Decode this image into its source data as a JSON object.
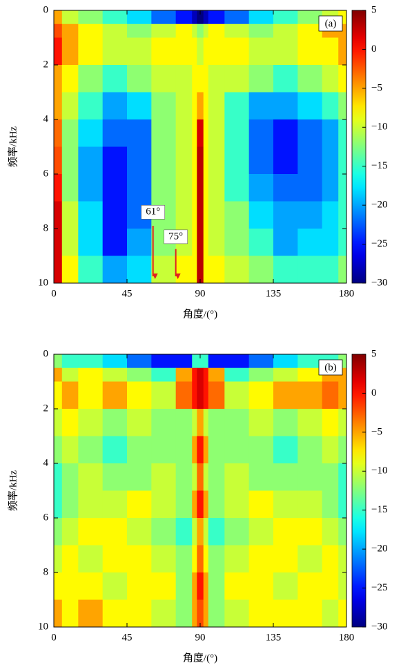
{
  "chart_data": [
    {
      "type": "heatmap",
      "label": "(a)",
      "xlabel": "角度/(°)",
      "ylabel": "频率/kHz",
      "colormap": "jet",
      "x_edges": [
        0,
        5,
        15,
        30,
        45,
        60,
        75,
        85,
        88,
        92,
        95,
        105,
        120,
        135,
        150,
        165,
        175,
        180
      ],
      "y_edges": [
        0,
        0.5,
        1,
        2,
        3,
        4,
        5,
        6,
        7,
        8,
        9,
        10
      ],
      "values": [
        [
          -5,
          -10,
          -12,
          -15,
          -18,
          -22,
          -25,
          -28,
          -30,
          -28,
          -25,
          -22,
          -18,
          -15,
          -12,
          -10,
          -8
        ],
        [
          -2,
          -5,
          -8,
          -10,
          -12,
          -10,
          -8,
          -10,
          -12,
          -10,
          -8,
          -10,
          -12,
          -10,
          -8,
          -5,
          -5
        ],
        [
          0,
          -5,
          -8,
          -10,
          -10,
          -8,
          -8,
          -8,
          -10,
          -8,
          -8,
          -8,
          -10,
          -10,
          -8,
          -8,
          -5
        ],
        [
          -5,
          -8,
          -12,
          -15,
          -12,
          -10,
          -10,
          -8,
          -8,
          -8,
          -10,
          -10,
          -12,
          -15,
          -12,
          -10,
          -8
        ],
        [
          -5,
          -10,
          -15,
          -20,
          -18,
          -12,
          -10,
          -8,
          -5,
          -8,
          -10,
          -15,
          -20,
          -20,
          -18,
          -15,
          -12
        ],
        [
          -3,
          -12,
          -18,
          -22,
          -22,
          -12,
          -10,
          -8,
          2,
          -8,
          -10,
          -15,
          -22,
          -25,
          -22,
          -20,
          -15
        ],
        [
          -2,
          -12,
          -20,
          -25,
          -22,
          -12,
          -10,
          -8,
          3,
          -8,
          -10,
          -15,
          -22,
          -25,
          -22,
          -20,
          -15
        ],
        [
          0,
          -12,
          -20,
          -25,
          -22,
          -12,
          -10,
          -8,
          3,
          -8,
          -10,
          -15,
          -20,
          -22,
          -22,
          -20,
          -15
        ],
        [
          2,
          -10,
          -18,
          -25,
          -22,
          -12,
          -10,
          -8,
          3,
          -8,
          -10,
          -12,
          -18,
          -20,
          -20,
          -18,
          -15
        ],
        [
          2,
          -10,
          -18,
          -25,
          -20,
          -12,
          -10,
          -8,
          3,
          -8,
          -10,
          -12,
          -15,
          -20,
          -18,
          -18,
          -15
        ],
        [
          2,
          -8,
          -15,
          -20,
          -18,
          -10,
          -8,
          -8,
          3,
          -8,
          -8,
          -10,
          -12,
          -15,
          -15,
          -15,
          -12
        ]
      ],
      "xlim": [
        0,
        180
      ],
      "xticks": [
        0,
        45,
        90,
        135,
        180
      ],
      "ylim": [
        0,
        10
      ],
      "y_inverted": true,
      "yticks": [
        0,
        2,
        4,
        6,
        8,
        10
      ],
      "zlim": [
        -30,
        5
      ],
      "zticks": [
        5,
        0,
        {
          "value": -5,
          "label": "−5"
        },
        {
          "value": -10,
          "label": "−10"
        },
        {
          "value": -15,
          "label": "−15"
        },
        {
          "value": -20,
          "label": "−20"
        },
        {
          "value": -25,
          "label": "−25"
        },
        {
          "value": -30,
          "label": "−30"
        }
      ],
      "annotations": [
        {
          "text": "61°",
          "x": 61
        },
        {
          "text": "75°",
          "x": 75
        }
      ]
    },
    {
      "type": "heatmap",
      "label": "(b)",
      "xlabel": "角度/(°)",
      "ylabel": "频率/kHz",
      "colormap": "jet",
      "x_edges": [
        0,
        5,
        15,
        30,
        45,
        60,
        75,
        85,
        88,
        92,
        95,
        105,
        120,
        135,
        150,
        165,
        175,
        180
      ],
      "y_edges": [
        0,
        0.5,
        1,
        2,
        3,
        4,
        5,
        6,
        7,
        8,
        9,
        10
      ],
      "values": [
        [
          -12,
          -15,
          -15,
          -18,
          -22,
          -25,
          -25,
          -15,
          -15,
          -15,
          -25,
          -25,
          -22,
          -18,
          -15,
          -15,
          -12
        ],
        [
          -5,
          -10,
          -8,
          -10,
          -12,
          -15,
          -5,
          0,
          2,
          0,
          -5,
          -15,
          -12,
          -10,
          -8,
          -5,
          -5
        ],
        [
          -8,
          -5,
          -8,
          -5,
          -8,
          -10,
          -3,
          0,
          2,
          0,
          -3,
          -10,
          -8,
          -5,
          -5,
          -3,
          -5
        ],
        [
          -10,
          -8,
          -10,
          -12,
          -10,
          -12,
          -12,
          -10,
          -5,
          -10,
          -12,
          -12,
          -10,
          -12,
          -10,
          -8,
          -10
        ],
        [
          -12,
          -10,
          -12,
          -15,
          -12,
          -12,
          -12,
          -5,
          0,
          -5,
          -12,
          -12,
          -12,
          -15,
          -12,
          -10,
          -12
        ],
        [
          -15,
          -12,
          -10,
          -12,
          -12,
          -10,
          -12,
          -10,
          -3,
          -10,
          -12,
          -10,
          -12,
          -12,
          -12,
          -12,
          -15
        ],
        [
          -15,
          -12,
          -10,
          -10,
          -8,
          -10,
          -12,
          -5,
          0,
          -5,
          -12,
          -10,
          -8,
          -10,
          -10,
          -12,
          -15
        ],
        [
          -12,
          -10,
          -8,
          -8,
          -10,
          -12,
          -15,
          -10,
          -5,
          -10,
          -15,
          -12,
          -10,
          -8,
          -8,
          -10,
          -12
        ],
        [
          -10,
          -8,
          -10,
          -8,
          -8,
          -10,
          -12,
          -8,
          -3,
          -8,
          -12,
          -10,
          -8,
          -8,
          -10,
          -8,
          -10
        ],
        [
          -8,
          -8,
          -8,
          -10,
          -8,
          -8,
          -12,
          -5,
          0,
          -5,
          -12,
          -8,
          -8,
          -10,
          -8,
          -8,
          -10
        ],
        [
          -5,
          -8,
          -5,
          -8,
          -8,
          -10,
          -12,
          -5,
          -2,
          -5,
          -12,
          -10,
          -8,
          -8,
          -8,
          -10,
          -8
        ]
      ],
      "xlim": [
        0,
        180
      ],
      "xticks": [
        0,
        45,
        90,
        135,
        180
      ],
      "ylim": [
        0,
        10
      ],
      "y_inverted": true,
      "yticks": [
        0,
        2,
        4,
        6,
        8,
        10
      ],
      "zlim": [
        -30,
        5
      ],
      "zticks": [
        5,
        0,
        {
          "value": -5,
          "label": "−5"
        },
        {
          "value": -10,
          "label": "−10"
        },
        {
          "value": -15,
          "label": "−15"
        },
        {
          "value": -20,
          "label": "−20"
        },
        {
          "value": -25,
          "label": "−25"
        },
        {
          "value": -30,
          "label": "−30"
        }
      ]
    }
  ]
}
